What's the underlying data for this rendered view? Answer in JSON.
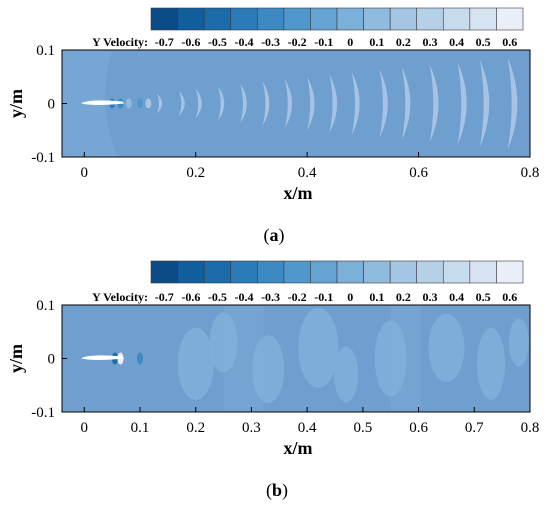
{
  "colors": {
    "background": "#6f9fcf",
    "scale": [
      "#0b4c86",
      "#125d9b",
      "#1c6cab",
      "#2b7bb8",
      "#3d89c2",
      "#5097cb",
      "#65a4d2",
      "#7bb0d9",
      "#8fbcde",
      "#a4c6e3",
      "#b6d0e8",
      "#c7dbee",
      "#d8e3f2",
      "#eaeef8"
    ],
    "vortex_light": "#a7c3e3",
    "foil": "#ffffff"
  },
  "chart_data": [
    {
      "type": "contour",
      "panel": "(a)",
      "legend": {
        "title": "Y Velocity:",
        "ticks": [
          "-0.7",
          "-0.6",
          "-0.5",
          "-0.4",
          "-0.3",
          "-0.2",
          "-0.1",
          "0",
          "0.1",
          "0.2",
          "0.3",
          "0.4",
          "0.5",
          "0.6"
        ]
      },
      "xlabel": "x/m",
      "ylabel": "y/m",
      "x_ticks": [
        "0",
        "0.2",
        "0.4",
        "0.6",
        "0.8"
      ],
      "y_ticks": [
        "0.1",
        "0",
        "-0.1"
      ],
      "xlim": [
        -0.04,
        0.8
      ],
      "ylim": [
        -0.1,
        0.1
      ],
      "vortex_x": [
        0.13,
        0.17,
        0.2,
        0.24,
        0.28,
        0.32,
        0.36,
        0.4,
        0.44,
        0.48,
        0.53,
        0.57,
        0.62,
        0.67,
        0.71,
        0.76
      ]
    },
    {
      "type": "contour",
      "panel": "(b)",
      "legend": {
        "title": "Y Velocity:",
        "ticks": [
          "-0.7",
          "-0.6",
          "-0.5",
          "-0.4",
          "-0.3",
          "-0.2",
          "-0.1",
          "0",
          "0.1",
          "0.2",
          "0.3",
          "0.4",
          "0.5",
          "0.6"
        ]
      },
      "xlabel": "x/m",
      "ylabel": "y/m",
      "x_ticks": [
        "0",
        "0.1",
        "0.2",
        "0.3",
        "0.4",
        "0.5",
        "0.6",
        "0.7",
        "0.8"
      ],
      "y_ticks": [
        "0.1",
        "0",
        "-0.1"
      ],
      "xlim": [
        -0.04,
        0.8
      ],
      "ylim": [
        -0.1,
        0.1
      ],
      "blob_x": [
        0.2,
        0.25,
        0.33,
        0.42,
        0.47,
        0.55,
        0.65,
        0.73,
        0.78
      ]
    }
  ]
}
